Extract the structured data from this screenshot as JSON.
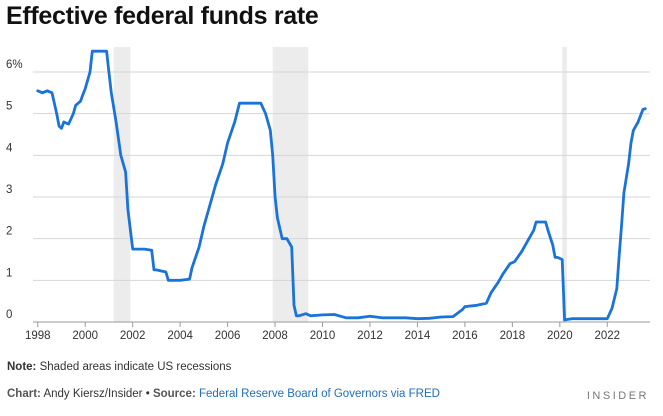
{
  "chart_data": {
    "type": "line",
    "title": "Effective federal funds rate",
    "xlabel": "",
    "ylabel": "",
    "xlim": [
      1997.8,
      2023.8
    ],
    "ylim": [
      0,
      6.6
    ],
    "yticks": [
      0,
      1,
      2,
      3,
      4,
      5,
      6
    ],
    "ytick_labels": [
      "0",
      "1",
      "2",
      "3",
      "4",
      "5",
      "6%"
    ],
    "xticks": [
      1998,
      2000,
      2002,
      2004,
      2006,
      2008,
      2010,
      2012,
      2014,
      2016,
      2018,
      2020,
      2022
    ],
    "xtick_labels": [
      "1998",
      "2000",
      "2002",
      "2004",
      "2006",
      "2008",
      "2010",
      "2012",
      "2014",
      "2016",
      "2018",
      "2020",
      "2022"
    ],
    "grid": true,
    "line_color": "#1a73d9",
    "recessions": [
      {
        "start": 2001.2,
        "end": 2001.9
      },
      {
        "start": 2007.9,
        "end": 2009.4
      },
      {
        "start": 2020.1,
        "end": 2020.3
      }
    ],
    "series": [
      {
        "name": "Effective federal funds rate",
        "x": [
          1998.0,
          1998.2,
          1998.4,
          1998.6,
          1998.8,
          1998.9,
          1999.0,
          1999.1,
          1999.3,
          1999.5,
          1999.6,
          1999.8,
          1999.9,
          2000.0,
          2000.2,
          2000.3,
          2000.5,
          2000.7,
          2000.9,
          2001.0,
          2001.1,
          2001.3,
          2001.5,
          2001.7,
          2001.8,
          2002.0,
          2002.5,
          2002.8,
          2002.9,
          2003.0,
          2003.4,
          2003.5,
          2003.8,
          2004.0,
          2004.4,
          2004.5,
          2004.8,
          2005.0,
          2005.3,
          2005.5,
          2005.8,
          2006.0,
          2006.3,
          2006.5,
          2007.0,
          2007.4,
          2007.6,
          2007.8,
          2007.9,
          2008.0,
          2008.1,
          2008.3,
          2008.5,
          2008.7,
          2008.8,
          2008.9,
          2009.0,
          2009.3,
          2009.5,
          2010.0,
          2010.5,
          2011.0,
          2011.5,
          2012.0,
          2012.5,
          2013.0,
          2013.5,
          2014.0,
          2014.5,
          2015.0,
          2015.5,
          2015.9,
          2016.0,
          2016.5,
          2016.9,
          2017.1,
          2017.4,
          2017.6,
          2017.9,
          2018.1,
          2018.4,
          2018.6,
          2018.9,
          2019.0,
          2019.4,
          2019.5,
          2019.7,
          2019.8,
          2019.9,
          2020.1,
          2020.2,
          2020.5,
          2021.0,
          2021.5,
          2022.0,
          2022.2,
          2022.4,
          2022.5,
          2022.6,
          2022.7,
          2022.9,
          2023.0,
          2023.1,
          2023.3,
          2023.5,
          2023.6
        ],
        "values": [
          5.55,
          5.5,
          5.55,
          5.5,
          5.0,
          4.7,
          4.65,
          4.8,
          4.75,
          5.0,
          5.2,
          5.3,
          5.45,
          5.6,
          6.0,
          6.5,
          6.5,
          6.5,
          6.5,
          6.0,
          5.5,
          4.8,
          4.0,
          3.6,
          2.7,
          1.75,
          1.75,
          1.72,
          1.25,
          1.25,
          1.2,
          1.0,
          1.0,
          1.0,
          1.03,
          1.3,
          1.8,
          2.3,
          2.9,
          3.3,
          3.8,
          4.3,
          4.8,
          5.25,
          5.25,
          5.25,
          5.0,
          4.6,
          4.0,
          3.0,
          2.5,
          2.0,
          2.0,
          1.8,
          0.4,
          0.15,
          0.15,
          0.2,
          0.15,
          0.17,
          0.18,
          0.1,
          0.1,
          0.14,
          0.1,
          0.1,
          0.1,
          0.08,
          0.09,
          0.12,
          0.13,
          0.3,
          0.37,
          0.4,
          0.45,
          0.7,
          0.95,
          1.15,
          1.4,
          1.45,
          1.7,
          1.9,
          2.2,
          2.4,
          2.4,
          2.2,
          1.85,
          1.55,
          1.55,
          1.5,
          0.05,
          0.08,
          0.08,
          0.08,
          0.08,
          0.33,
          0.8,
          1.6,
          2.3,
          3.1,
          3.8,
          4.3,
          4.6,
          4.8,
          5.1,
          5.12
        ]
      }
    ]
  },
  "footer": {
    "note_label": "Note:",
    "note_text": "Shaded areas indicate US recessions",
    "chart_label": "Chart:",
    "chart_author": "Andy Kiersz/Insider",
    "bullet": "•",
    "source_label": "Source:",
    "source_text": "Federal Reserve Board of Governors via FRED",
    "brand": "INSIDER"
  }
}
